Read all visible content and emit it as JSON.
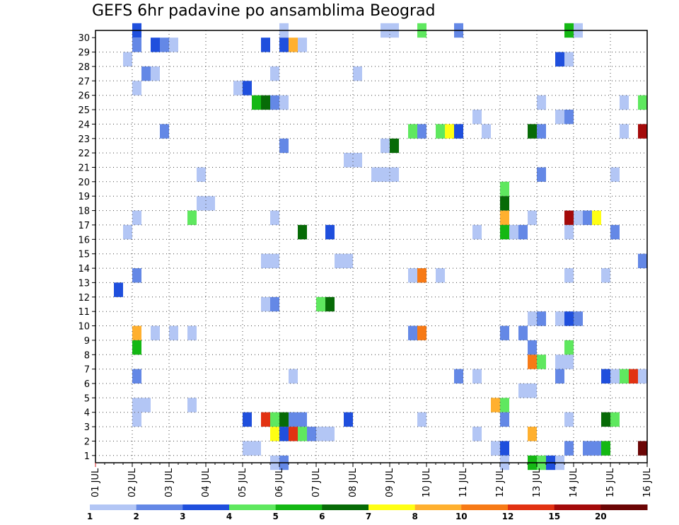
{
  "chart_data": {
    "type": "heatmap",
    "title": "GEFS 6hr padavine po ansamblima Beograd",
    "x_ticks": [
      "01 JUL",
      "02 JUL",
      "03 JUL",
      "04 JUL",
      "05 JUL",
      "06 JUL",
      "07 JUL",
      "08 JUL",
      "09 JUL",
      "10 JUL",
      "11 JUL",
      "12 JUL",
      "13 JUL",
      "14 JUL",
      "15 JUL",
      "16 JUL"
    ],
    "y_ticks": [
      "1",
      "2",
      "3",
      "4",
      "5",
      "6",
      "7",
      "8",
      "9",
      "10",
      "11",
      "12",
      "13",
      "14",
      "15",
      "16",
      "17",
      "18",
      "19",
      "20",
      "21",
      "22",
      "23",
      "24",
      "25",
      "26",
      "27",
      "28",
      "29",
      "30"
    ],
    "x_range": [
      "01 JUL",
      "16 JUL"
    ],
    "y_range": [
      0,
      30
    ],
    "grid": true,
    "colorbar": {
      "position": "bottom",
      "labels": [
        "1",
        "2",
        "3",
        "4",
        "5",
        "6",
        "7",
        "8",
        "10",
        "12",
        "15",
        "20"
      ],
      "colors": [
        "#b3c6f5",
        "#6488e6",
        "#1f4fdd",
        "#5fe85f",
        "#14b814",
        "#076b07",
        "#ffff14",
        "#ffb02f",
        "#f77a16",
        "#e23212",
        "#a40a0a",
        "#6b0505"
      ]
    },
    "cells": [
      [
        "02 JUL 00Z",
        30,
        2
      ],
      [
        "02 JUL 00Z",
        29,
        1
      ],
      [
        "02 JUL 12Z",
        29,
        2
      ],
      [
        "02 JUL 18Z",
        29,
        1
      ],
      [
        "03 JUL 00Z",
        29,
        0
      ],
      [
        "01 JUL 18Z",
        28,
        0
      ],
      [
        "02 JUL 06Z",
        27,
        1
      ],
      [
        "02 JUL 12Z",
        27,
        0
      ],
      [
        "02 JUL 00Z",
        26,
        0
      ],
      [
        "02 JUL 18Z",
        23,
        1
      ],
      [
        "02 JUL 00Z",
        17,
        0
      ],
      [
        "01 JUL 18Z",
        16,
        0
      ],
      [
        "02 JUL 00Z",
        13,
        1
      ],
      [
        "01 JUL 12Z",
        12,
        2
      ],
      [
        "02 JUL 00Z",
        9,
        7
      ],
      [
        "02 JUL 12Z",
        9,
        0
      ],
      [
        "03 JUL 00Z",
        9,
        0
      ],
      [
        "03 JUL 12Z",
        9,
        0
      ],
      [
        "02 JUL 00Z",
        8,
        4
      ],
      [
        "02 JUL 00Z",
        6,
        1
      ],
      [
        "02 JUL 00Z",
        4,
        0
      ],
      [
        "02 JUL 06Z",
        4,
        0
      ],
      [
        "03 JUL 12Z",
        4,
        0
      ],
      [
        "02 JUL 00Z",
        3,
        0
      ],
      [
        "03 JUL 18Z",
        20,
        0
      ],
      [
        "03 JUL 18Z",
        18,
        0
      ],
      [
        "04 JUL 00Z",
        18,
        0
      ],
      [
        "03 JUL 12Z",
        17,
        3
      ],
      [
        "06 JUL 00Z",
        30,
        0
      ],
      [
        "05 JUL 12Z",
        29,
        2
      ],
      [
        "06 JUL 00Z",
        29,
        2
      ],
      [
        "06 JUL 06Z",
        29,
        7
      ],
      [
        "06 JUL 12Z",
        29,
        0
      ],
      [
        "05 JUL 18Z",
        27,
        0
      ],
      [
        "04 JUL 18Z",
        26,
        0
      ],
      [
        "05 JUL 00Z",
        26,
        2
      ],
      [
        "05 JUL 06Z",
        25,
        4
      ],
      [
        "05 JUL 12Z",
        25,
        5
      ],
      [
        "05 JUL 18Z",
        25,
        1
      ],
      [
        "06 JUL 00Z",
        25,
        0
      ],
      [
        "06 JUL 00Z",
        22,
        1
      ],
      [
        "05 JUL 18Z",
        17,
        0
      ],
      [
        "06 JUL 12Z",
        16,
        5
      ],
      [
        "05 JUL 12Z",
        14,
        0
      ],
      [
        "05 JUL 18Z",
        14,
        0
      ],
      [
        "05 JUL 12Z",
        11,
        0
      ],
      [
        "05 JUL 18Z",
        11,
        1
      ],
      [
        "06 JUL 06Z",
        6,
        0
      ],
      [
        "05 JUL 00Z",
        3,
        2
      ],
      [
        "05 JUL 12Z",
        3,
        9
      ],
      [
        "05 JUL 18Z",
        3,
        3
      ],
      [
        "06 JUL 00Z",
        3,
        5
      ],
      [
        "06 JUL 06Z",
        3,
        1
      ],
      [
        "06 JUL 12Z",
        3,
        1
      ],
      [
        "05 JUL 18Z",
        2,
        6
      ],
      [
        "06 JUL 00Z",
        2,
        2
      ],
      [
        "06 JUL 06Z",
        2,
        9
      ],
      [
        "06 JUL 12Z",
        2,
        3
      ],
      [
        "06 JUL 18Z",
        2,
        1
      ],
      [
        "07 JUL 00Z",
        2,
        0
      ],
      [
        "07 JUL 06Z",
        2,
        0
      ],
      [
        "05 JUL 00Z",
        1,
        0
      ],
      [
        "05 JUL 06Z",
        1,
        0
      ],
      [
        "05 JUL 18Z",
        0,
        0
      ],
      [
        "06 JUL 00Z",
        0,
        1
      ],
      [
        "08 JUL 00Z",
        27,
        0
      ],
      [
        "07 JUL 18Z",
        21,
        0
      ],
      [
        "08 JUL 00Z",
        21,
        0
      ],
      [
        "07 JUL 06Z",
        16,
        2
      ],
      [
        "07 JUL 12Z",
        14,
        0
      ],
      [
        "07 JUL 18Z",
        14,
        0
      ],
      [
        "07 JUL 00Z",
        11,
        3
      ],
      [
        "07 JUL 06Z",
        11,
        5
      ],
      [
        "07 JUL 18Z",
        3,
        2
      ],
      [
        "08 JUL 18Z",
        30,
        0
      ],
      [
        "09 JUL 00Z",
        30,
        0
      ],
      [
        "09 JUL 18Z",
        30,
        3
      ],
      [
        "09 JUL 12Z",
        23,
        3
      ],
      [
        "09 JUL 18Z",
        23,
        1
      ],
      [
        "10 JUL 06Z",
        23,
        3
      ],
      [
        "10 JUL 12Z",
        23,
        6
      ],
      [
        "10 JUL 18Z",
        23,
        2
      ],
      [
        "08 JUL 18Z",
        22,
        0
      ],
      [
        "09 JUL 00Z",
        22,
        5
      ],
      [
        "08 JUL 12Z",
        20,
        0
      ],
      [
        "08 JUL 18Z",
        20,
        0
      ],
      [
        "09 JUL 00Z",
        20,
        0
      ],
      [
        "09 JUL 12Z",
        13,
        0
      ],
      [
        "09 JUL 18Z",
        13,
        8
      ],
      [
        "10 JUL 06Z",
        13,
        0
      ],
      [
        "09 JUL 12Z",
        9,
        1
      ],
      [
        "09 JUL 18Z",
        9,
        8
      ],
      [
        "09 JUL 18Z",
        3,
        0
      ],
      [
        "10 JUL 18Z",
        30,
        1
      ],
      [
        "11 JUL 06Z",
        24,
        0
      ],
      [
        "11 JUL 12Z",
        23,
        0
      ],
      [
        "11 JUL 06Z",
        16,
        0
      ],
      [
        "10 JUL 18Z",
        6,
        1
      ],
      [
        "11 JUL 06Z",
        6,
        0
      ],
      [
        "11 JUL 06Z",
        2,
        0
      ],
      [
        "12 JUL 18Z",
        23,
        5
      ],
      [
        "13 JUL 00Z",
        23,
        1
      ],
      [
        "12 JUL 00Z",
        19,
        3
      ],
      [
        "12 JUL 00Z",
        18,
        5
      ],
      [
        "12 JUL 00Z",
        17,
        7
      ],
      [
        "12 JUL 00Z",
        16,
        4
      ],
      [
        "12 JUL 06Z",
        16,
        0
      ],
      [
        "12 JUL 12Z",
        16,
        1
      ],
      [
        "12 JUL 18Z",
        17,
        0
      ],
      [
        "12 JUL 18Z",
        10,
        0
      ],
      [
        "13 JUL 00Z",
        10,
        1
      ],
      [
        "12 JUL 00Z",
        9,
        1
      ],
      [
        "12 JUL 12Z",
        9,
        1
      ],
      [
        "12 JUL 18Z",
        8,
        1
      ],
      [
        "12 JUL 18Z",
        7,
        8
      ],
      [
        "13 JUL 00Z",
        7,
        3
      ],
      [
        "12 JUL 12Z",
        5,
        0
      ],
      [
        "12 JUL 18Z",
        5,
        0
      ],
      [
        "11 JUL 18Z",
        4,
        7
      ],
      [
        "12 JUL 00Z",
        4,
        3
      ],
      [
        "12 JUL 00Z",
        3,
        1
      ],
      [
        "12 JUL 18Z",
        2,
        7
      ],
      [
        "11 JUL 18Z",
        1,
        0
      ],
      [
        "12 JUL 00Z",
        1,
        2
      ],
      [
        "12 JUL 00Z",
        0,
        0
      ],
      [
        "12 JUL 18Z",
        0,
        4
      ],
      [
        "13 JUL 00Z",
        0,
        3
      ],
      [
        "13 JUL 06Z",
        0,
        2
      ],
      [
        "13 JUL 12Z",
        0,
        0
      ],
      [
        "13 JUL 00Z",
        25,
        0
      ],
      [
        "13 JUL 12Z",
        28,
        2
      ],
      [
        "13 JUL 12Z",
        24,
        0
      ],
      [
        "13 JUL 18Z",
        30,
        4
      ],
      [
        "14 JUL 00Z",
        30,
        0
      ],
      [
        "13 JUL 18Z",
        28,
        0
      ],
      [
        "13 JUL 18Z",
        24,
        1
      ],
      [
        "13 JUL 00Z",
        20,
        1
      ],
      [
        "13 JUL 18Z",
        17,
        10
      ],
      [
        "14 JUL 00Z",
        17,
        0
      ],
      [
        "14 JUL 06Z",
        17,
        1
      ],
      [
        "14 JUL 12Z",
        17,
        6
      ],
      [
        "13 JUL 18Z",
        16,
        0
      ],
      [
        "13 JUL 18Z",
        13,
        0
      ],
      [
        "13 JUL 12Z",
        10,
        0
      ],
      [
        "13 JUL 18Z",
        10,
        2
      ],
      [
        "14 JUL 00Z",
        10,
        1
      ],
      [
        "13 JUL 18Z",
        8,
        3
      ],
      [
        "13 JUL 12Z",
        7,
        0
      ],
      [
        "13 JUL 18Z",
        7,
        0
      ],
      [
        "13 JUL 12Z",
        6,
        1
      ],
      [
        "13 JUL 18Z",
        3,
        0
      ],
      [
        "13 JUL 18Z",
        1,
        1
      ],
      [
        "14 JUL 06Z",
        1,
        1
      ],
      [
        "14 JUL 12Z",
        1,
        1
      ],
      [
        "14 JUL 18Z",
        1,
        4
      ],
      [
        "15 JUL 06Z",
        25,
        0
      ],
      [
        "15 JUL 18Z",
        25,
        3
      ],
      [
        "15 JUL 06Z",
        23,
        0
      ],
      [
        "15 JUL 18Z",
        23,
        10
      ],
      [
        "15 JUL 00Z",
        20,
        0
      ],
      [
        "15 JUL 00Z",
        16,
        1
      ],
      [
        "14 JUL 18Z",
        13,
        0
      ],
      [
        "15 JUL 18Z",
        14,
        1
      ],
      [
        "14 JUL 18Z",
        6,
        2
      ],
      [
        "15 JUL 00Z",
        6,
        0
      ],
      [
        "15 JUL 06Z",
        6,
        3
      ],
      [
        "15 JUL 12Z",
        6,
        9
      ],
      [
        "15 JUL 18Z",
        6,
        0
      ],
      [
        "14 JUL 18Z",
        3,
        5
      ],
      [
        "15 JUL 00Z",
        3,
        3
      ],
      [
        "15 JUL 18Z",
        1,
        11
      ]
    ]
  }
}
